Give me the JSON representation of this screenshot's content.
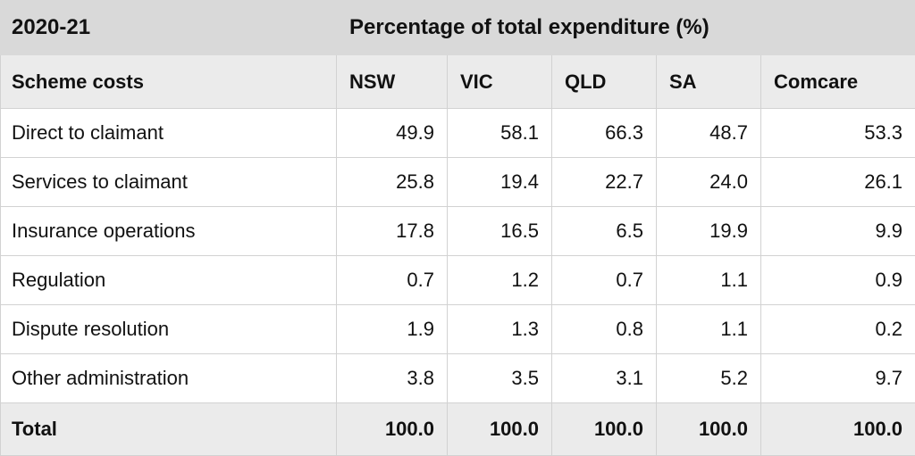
{
  "table": {
    "corner_label": "2020-21",
    "span_header": "Percentage of total expenditure (%)",
    "row_header": "Scheme costs",
    "columns": [
      "NSW",
      "VIC",
      "QLD",
      "SA",
      "Comcare"
    ],
    "rows": [
      {
        "label": "Direct to claimant",
        "values": [
          "49.9",
          "58.1",
          "66.3",
          "48.7",
          "53.3"
        ]
      },
      {
        "label": "Services to claimant",
        "values": [
          "25.8",
          "19.4",
          "22.7",
          "24.0",
          "26.1"
        ]
      },
      {
        "label": "Insurance operations",
        "values": [
          "17.8",
          "16.5",
          "6.5",
          "19.9",
          "9.9"
        ]
      },
      {
        "label": "Regulation",
        "values": [
          "0.7",
          "1.2",
          "0.7",
          "1.1",
          "0.9"
        ]
      },
      {
        "label": "Dispute resolution",
        "values": [
          "1.9",
          "1.3",
          "0.8",
          "1.1",
          "0.2"
        ]
      },
      {
        "label": "Other administration",
        "values": [
          "3.8",
          "3.5",
          "3.1",
          "5.2",
          "9.7"
        ]
      }
    ],
    "total": {
      "label": "Total",
      "values": [
        "100.0",
        "100.0",
        "100.0",
        "100.0",
        "100.0"
      ]
    }
  },
  "chart_data": {
    "type": "table",
    "title": "Percentage of total expenditure (%)",
    "period": "2020-21",
    "row_header": "Scheme costs",
    "columns": [
      "NSW",
      "VIC",
      "QLD",
      "SA",
      "Comcare"
    ],
    "rows": [
      {
        "label": "Direct to claimant",
        "values": [
          49.9,
          58.1,
          66.3,
          48.7,
          53.3
        ]
      },
      {
        "label": "Services to claimant",
        "values": [
          25.8,
          19.4,
          22.7,
          24.0,
          26.1
        ]
      },
      {
        "label": "Insurance operations",
        "values": [
          17.8,
          16.5,
          6.5,
          19.9,
          9.9
        ]
      },
      {
        "label": "Regulation",
        "values": [
          0.7,
          1.2,
          0.7,
          1.1,
          0.9
        ]
      },
      {
        "label": "Dispute resolution",
        "values": [
          1.9,
          1.3,
          0.8,
          1.1,
          0.2
        ]
      },
      {
        "label": "Other administration",
        "values": [
          3.8,
          3.5,
          3.1,
          5.2,
          9.7
        ]
      },
      {
        "label": "Total",
        "values": [
          100.0,
          100.0,
          100.0,
          100.0,
          100.0
        ]
      }
    ]
  }
}
